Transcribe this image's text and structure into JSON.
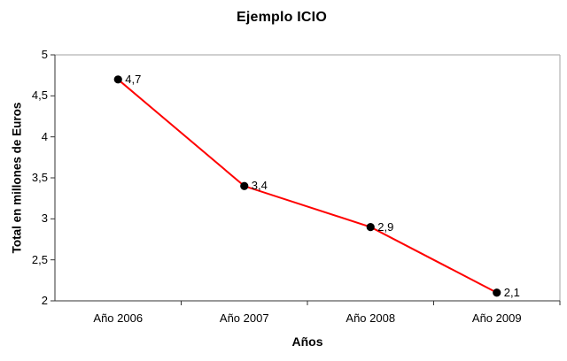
{
  "chart_data": {
    "type": "line",
    "title": "Ejemplo ICIO",
    "xlabel": "Años",
    "ylabel": "Total en millones de Euros",
    "categories": [
      "Año 2006",
      "Año 2007",
      "Año 2008",
      "Año 2009"
    ],
    "values": [
      4.7,
      3.4,
      2.9,
      2.1
    ],
    "point_labels": [
      "4,7",
      "3,4",
      "2,9",
      "2,1"
    ],
    "ylim": [
      2,
      5
    ],
    "yticks": [
      {
        "value": 5,
        "label": "5"
      },
      {
        "value": 4.5,
        "label": "4,5"
      },
      {
        "value": 4,
        "label": "4"
      },
      {
        "value": 3.5,
        "label": "3,5"
      },
      {
        "value": 3,
        "label": "3"
      },
      {
        "value": 2.5,
        "label": "2,5"
      },
      {
        "value": 2,
        "label": "2"
      }
    ],
    "grid": false,
    "legend": "none",
    "colors": {
      "line": "#ff0000",
      "marker": "#000000",
      "axis": "#333333",
      "plot_border": "#b3b3b3",
      "text": "#000000"
    }
  }
}
